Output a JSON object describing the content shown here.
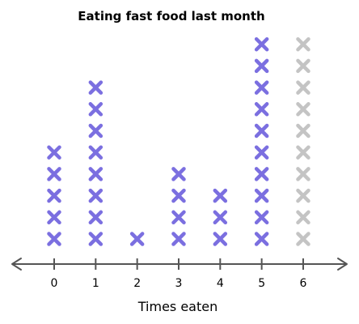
{
  "chart_data": {
    "type": "dot-plot",
    "title": "Eating fast food last month",
    "xlabel": "Times eaten",
    "ylabel": "",
    "categories": [
      "0",
      "1",
      "2",
      "3",
      "4",
      "5",
      "6"
    ],
    "x": [
      0,
      1,
      2,
      3,
      4,
      5,
      6
    ],
    "series": [
      {
        "values": [
          5,
          8,
          1,
          4,
          3,
          10,
          0
        ],
        "color": "#7b6fe0"
      },
      {
        "values": [
          0,
          0,
          0,
          0,
          0,
          0,
          10
        ],
        "color": "#c4c4c4"
      }
    ],
    "xlim": [
      0,
      6
    ],
    "marker": "x-mark",
    "axis_arrows": "both-ends",
    "grid": false,
    "legend": "none"
  }
}
